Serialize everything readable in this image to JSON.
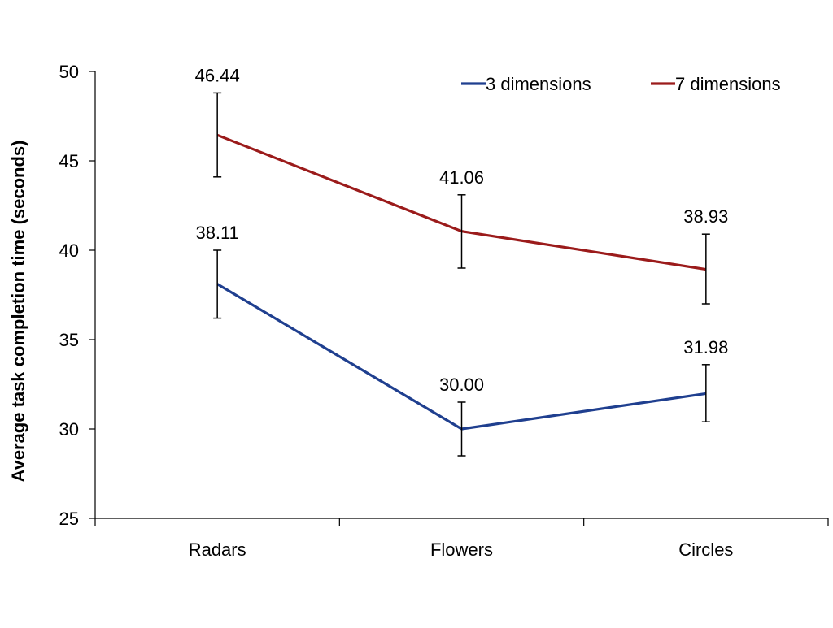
{
  "chart_data": {
    "type": "line",
    "categories": [
      "Radars",
      "Flowers",
      "Circles"
    ],
    "ylabel": "Average task completion time (seconds)",
    "xlabel": "",
    "ylim": [
      25,
      50
    ],
    "yticks": [
      25,
      30,
      35,
      40,
      45,
      50
    ],
    "grid": false,
    "legend_position": "top-right",
    "series": [
      {
        "name": "3 dimensions",
        "color": "#1F3F8F",
        "values": [
          38.11,
          30.0,
          31.98
        ],
        "labels": [
          "38.11",
          "30.00",
          "31.98"
        ],
        "error_low": [
          36.2,
          28.5,
          30.4
        ],
        "error_high": [
          40.0,
          31.5,
          33.6
        ]
      },
      {
        "name": "7 dimensions",
        "color": "#9B1B1B",
        "values": [
          46.44,
          41.06,
          38.93
        ],
        "labels": [
          "46.44",
          "41.06",
          "38.93"
        ],
        "error_low": [
          44.1,
          39.0,
          37.0
        ],
        "error_high": [
          48.8,
          43.1,
          40.9
        ]
      }
    ]
  }
}
